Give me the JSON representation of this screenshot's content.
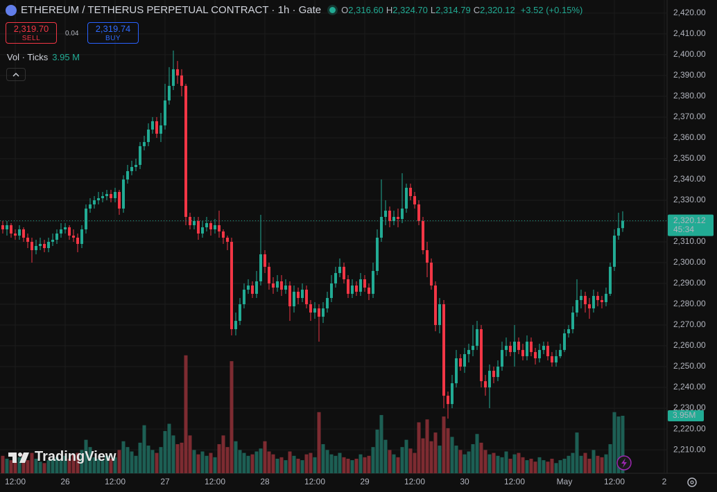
{
  "header": {
    "symbol": "ETHEREUM / TETHERUS PERPETUAL CONTRACT · 1h · Gate",
    "ohlc": [
      {
        "key": "O",
        "value": "2,316.60"
      },
      {
        "key": "H",
        "value": "2,324.70"
      },
      {
        "key": "L",
        "value": "2,314.79"
      },
      {
        "key": "C",
        "value": "2,320.12"
      }
    ],
    "change": "+3.52 (+0.15%)",
    "sell_price": "2,319.70",
    "sell_label": "SELL",
    "spread": "0.04",
    "buy_price": "2,319.74",
    "buy_label": "BUY",
    "volume_label": "Vol · Ticks",
    "volume_value": "3.95 M"
  },
  "branding": "TradingView",
  "chart_data": {
    "type": "candlestick",
    "ylim": [
      2198.7,
      2426.3
    ],
    "yticks": [
      {
        "value": 2210,
        "label": "2,210.00"
      },
      {
        "value": 2220,
        "label": "2,220.00"
      },
      {
        "value": 2230,
        "label": "2,230.00"
      },
      {
        "value": 2240,
        "label": "2,240.00"
      },
      {
        "value": 2250,
        "label": "2,250.00"
      },
      {
        "value": 2260,
        "label": "2,260.00"
      },
      {
        "value": 2270,
        "label": "2,270.00"
      },
      {
        "value": 2280,
        "label": "2,280.00"
      },
      {
        "value": 2290,
        "label": "2,290.00"
      },
      {
        "value": 2300,
        "label": "2,300.00"
      },
      {
        "value": 2310,
        "label": "2,310.00"
      },
      {
        "value": 2320,
        "label": "2,320.00"
      },
      {
        "value": 2330,
        "label": "2,330.00"
      },
      {
        "value": 2340,
        "label": "2,340.00"
      },
      {
        "value": 2350,
        "label": "2,350.00"
      },
      {
        "value": 2360,
        "label": "2,360.00"
      },
      {
        "value": 2370,
        "label": "2,370.00"
      },
      {
        "value": 2380,
        "label": "2,380.00"
      },
      {
        "value": 2390,
        "label": "2,390.00"
      },
      {
        "value": 2400,
        "label": "2,400.00"
      },
      {
        "value": 2410,
        "label": "2,410.00"
      },
      {
        "value": 2420,
        "label": "2,420.00"
      }
    ],
    "xlim": [
      -0.667,
      159.667
    ],
    "xticks": [
      {
        "value": 3,
        "label": "12:00"
      },
      {
        "value": 15,
        "label": "26"
      },
      {
        "value": 27,
        "label": "12:00"
      },
      {
        "value": 39,
        "label": "27"
      },
      {
        "value": 51,
        "label": "12:00"
      },
      {
        "value": 63,
        "label": "28"
      },
      {
        "value": 75,
        "label": "12:00"
      },
      {
        "value": 87,
        "label": "29"
      },
      {
        "value": 99,
        "label": "12:00"
      },
      {
        "value": 111,
        "label": "30"
      },
      {
        "value": 123,
        "label": "12:00"
      },
      {
        "value": 135,
        "label": "May"
      },
      {
        "value": 147,
        "label": "12:00"
      },
      {
        "value": 159,
        "label": "2"
      }
    ],
    "grid": true,
    "up_color": "#22ab94",
    "down_color": "#f23645",
    "volume_up_color": "#1d5f54",
    "volume_down_color": "#7d2b31",
    "open": [
      2318,
      2316,
      2318,
      2314,
      2313,
      2316,
      2312,
      2310,
      2306,
      2308,
      2309,
      2307,
      2310,
      2311,
      2314,
      2316,
      2317,
      2313,
      2312,
      2309,
      2316,
      2326,
      2328,
      2330,
      2331,
      2332,
      2333,
      2331,
      2334,
      2326,
      2340,
      2344,
      2346,
      2347,
      2356,
      2358,
      2364,
      2368,
      2362,
      2366,
      2378,
      2385,
      2393,
      2390,
      2385,
      2322,
      2318,
      2320,
      2314,
      2317,
      2319,
      2316,
      2318,
      2315,
      2312,
      2310,
      2268,
      2272,
      2280,
      2287,
      2289,
      2285,
      2291,
      2304,
      2298,
      2290,
      2288,
      2291,
      2287,
      2289,
      2279,
      2286,
      2283,
      2287,
      2280,
      2276,
      2278,
      2274,
      2278,
      2283,
      2290,
      2295,
      2298,
      2292,
      2285,
      2289,
      2286,
      2292,
      2288,
      2285,
      2296,
      2312,
      2322,
      2325,
      2320,
      2322,
      2321,
      2326,
      2336,
      2332,
      2328,
      2320,
      2306,
      2300,
      2289,
      2270,
      2280,
      2236,
      2232,
      2242,
      2254,
      2250,
      2256,
      2258,
      2260,
      2268,
      2243,
      2240,
      2248,
      2245,
      2250,
      2258,
      2260,
      2257,
      2262,
      2258,
      2255,
      2262,
      2257,
      2254,
      2258,
      2260,
      2255,
      2252,
      2255,
      2258,
      2266,
      2268,
      2276,
      2282,
      2284,
      2280,
      2278,
      2284,
      2282,
      2281,
      2285,
      2298,
      2313,
      2316.6
    ],
    "high": [
      2320,
      2320,
      2319,
      2316,
      2318,
      2317,
      2314,
      2312,
      2311,
      2312,
      2311,
      2312,
      2314,
      2316,
      2319,
      2319,
      2318,
      2316,
      2314,
      2318,
      2328,
      2331,
      2332,
      2334,
      2334,
      2335,
      2335,
      2336,
      2335,
      2342,
      2347,
      2349,
      2350,
      2358,
      2361,
      2367,
      2370,
      2370,
      2372,
      2386,
      2394,
      2402,
      2397,
      2393,
      2386,
      2324,
      2322,
      2322,
      2320,
      2322,
      2320,
      2321,
      2325,
      2316,
      2313,
      2312,
      2276,
      2283,
      2290,
      2292,
      2291,
      2296,
      2323,
      2306,
      2300,
      2293,
      2294,
      2294,
      2292,
      2291,
      2289,
      2288,
      2290,
      2289,
      2282,
      2281,
      2280,
      2281,
      2286,
      2294,
      2298,
      2302,
      2300,
      2294,
      2292,
      2291,
      2295,
      2294,
      2290,
      2300,
      2316,
      2340,
      2330,
      2327,
      2325,
      2326,
      2343,
      2338,
      2338,
      2334,
      2330,
      2322,
      2310,
      2302,
      2291,
      2283,
      2282,
      2238,
      2246,
      2258,
      2256,
      2259,
      2261,
      2270,
      2272,
      2270,
      2246,
      2251,
      2250,
      2253,
      2262,
      2264,
      2262,
      2270,
      2264,
      2261,
      2265,
      2264,
      2259,
      2261,
      2262,
      2262,
      2257,
      2258,
      2261,
      2268,
      2270,
      2279,
      2292,
      2287,
      2286,
      2283,
      2287,
      2286,
      2284,
      2288,
      2300,
      2316,
      2324,
      2324.7
    ],
    "low": [
      2314,
      2313,
      2312,
      2311,
      2311,
      2310,
      2307,
      2300,
      2304,
      2306,
      2305,
      2305,
      2308,
      2309,
      2312,
      2314,
      2311,
      2310,
      2305,
      2307,
      2314,
      2324,
      2326,
      2328,
      2329,
      2330,
      2329,
      2329,
      2323,
      2324,
      2338,
      2342,
      2344,
      2345,
      2354,
      2356,
      2362,
      2360,
      2358,
      2364,
      2376,
      2383,
      2386,
      2380,
      2318,
      2316,
      2316,
      2311,
      2312,
      2315,
      2313,
      2314,
      2312,
      2309,
      2306,
      2265,
      2265,
      2270,
      2278,
      2285,
      2283,
      2283,
      2289,
      2295,
      2287,
      2285,
      2286,
      2284,
      2285,
      2272,
      2276,
      2280,
      2281,
      2278,
      2272,
      2273,
      2262,
      2271,
      2276,
      2281,
      2288,
      2293,
      2290,
      2283,
      2283,
      2284,
      2284,
      2286,
      2282,
      2283,
      2294,
      2310,
      2318,
      2317,
      2318,
      2317,
      2319,
      2324,
      2330,
      2326,
      2318,
      2304,
      2293,
      2287,
      2267,
      2266,
      2230,
      2225,
      2230,
      2240,
      2248,
      2247,
      2252,
      2255,
      2258,
      2240,
      2236,
      2230,
      2242,
      2243,
      2248,
      2255,
      2255,
      2250,
      2256,
      2253,
      2253,
      2255,
      2251,
      2252,
      2256,
      2253,
      2250,
      2250,
      2254,
      2257,
      2264,
      2266,
      2274,
      2278,
      2276,
      2273,
      2276,
      2279,
      2278,
      2279,
      2284,
      2296,
      2311,
      2314.79
    ],
    "close": [
      2316,
      2318,
      2314,
      2313,
      2316,
      2312,
      2310,
      2306,
      2308,
      2309,
      2307,
      2310,
      2311,
      2314,
      2316,
      2317,
      2313,
      2312,
      2309,
      2316,
      2326,
      2328,
      2330,
      2331,
      2332,
      2333,
      2331,
      2334,
      2326,
      2340,
      2344,
      2346,
      2347,
      2356,
      2358,
      2364,
      2368,
      2362,
      2366,
      2378,
      2385,
      2393,
      2390,
      2385,
      2322,
      2318,
      2320,
      2314,
      2317,
      2319,
      2316,
      2318,
      2315,
      2312,
      2310,
      2268,
      2272,
      2280,
      2287,
      2289,
      2285,
      2291,
      2304,
      2298,
      2290,
      2288,
      2291,
      2287,
      2289,
      2279,
      2286,
      2283,
      2287,
      2280,
      2276,
      2278,
      2274,
      2278,
      2283,
      2290,
      2295,
      2298,
      2292,
      2285,
      2289,
      2286,
      2292,
      2288,
      2285,
      2296,
      2312,
      2322,
      2325,
      2320,
      2322,
      2321,
      2326,
      2336,
      2332,
      2328,
      2320,
      2306,
      2300,
      2289,
      2270,
      2280,
      2236,
      2232,
      2242,
      2254,
      2250,
      2256,
      2258,
      2260,
      2268,
      2243,
      2240,
      2248,
      2245,
      2250,
      2258,
      2260,
      2257,
      2262,
      2258,
      2255,
      2262,
      2257,
      2254,
      2258,
      2260,
      2255,
      2252,
      2255,
      2258,
      2266,
      2268,
      2276,
      2282,
      2284,
      2280,
      2278,
      2284,
      2282,
      2281,
      2285,
      2298,
      2313,
      2316.6,
      2320.12
    ],
    "volume_lim": [
      0,
      32.5
    ],
    "volume": [
      1.2,
      1.0,
      0.9,
      0.8,
      1.1,
      1.3,
      0.9,
      1.4,
      1.0,
      0.8,
      0.7,
      0.9,
      1.0,
      1.1,
      0.9,
      1.2,
      1.0,
      1.3,
      1.4,
      1.6,
      2.3,
      1.8,
      1.1,
      1.0,
      0.9,
      1.2,
      1.0,
      1.1,
      1.6,
      2.2,
      1.8,
      1.5,
      1.2,
      2.1,
      3.3,
      1.9,
      1.6,
      1.4,
      1.8,
      2.9,
      3.4,
      2.6,
      2.0,
      2.1,
      8.1,
      2.6,
      1.6,
      1.3,
      1.5,
      1.2,
      1.4,
      1.1,
      2.0,
      2.6,
      1.8,
      7.7,
      2.2,
      1.6,
      1.4,
      1.2,
      1.3,
      1.5,
      1.7,
      2.2,
      1.5,
      1.3,
      1.0,
      1.1,
      0.9,
      1.5,
      1.2,
      1.0,
      0.9,
      1.3,
      1.4,
      1.1,
      4.2,
      2.0,
      1.6,
      1.3,
      1.2,
      1.4,
      1.1,
      1.0,
      0.9,
      1.0,
      1.3,
      1.1,
      1.2,
      1.8,
      3.0,
      4.0,
      2.3,
      1.6,
      1.3,
      1.1,
      1.8,
      2.3,
      1.7,
      1.4,
      3.5,
      2.4,
      3.7,
      2.2,
      2.8,
      1.9,
      3.9,
      3.1,
      2.5,
      1.9,
      1.6,
      1.3,
      1.5,
      2.0,
      2.7,
      2.1,
      1.6,
      1.3,
      1.4,
      1.2,
      1.1,
      1.5,
      1.0,
      1.3,
      1.4,
      1.1,
      0.9,
      1.0,
      0.8,
      1.1,
      0.9,
      0.8,
      1.0,
      0.7,
      0.9,
      1.0,
      1.2,
      1.4,
      2.8,
      1.2,
      1.4,
      1.0,
      1.6,
      1.2,
      1.1,
      1.3,
      2.0,
      4.2,
      3.9,
      3.95
    ],
    "last_price_label": "2,320.12",
    "countdown": "45:34",
    "volume_tag": "3.95M"
  }
}
